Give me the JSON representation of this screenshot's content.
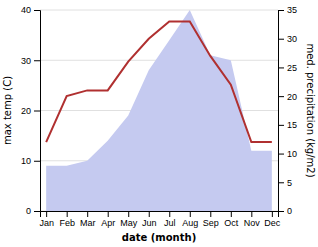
{
  "chart_data": {
    "type": "line",
    "categories": [
      "Jan",
      "Feb",
      "Mar",
      "Apr",
      "May",
      "Jun",
      "Jul",
      "Aug",
      "Sep",
      "Oct",
      "Nov",
      "Dec"
    ],
    "series": [
      {
        "type": "area",
        "color": "#c5caf0",
        "values": [
          9,
          9,
          10,
          14,
          19,
          28,
          34,
          40,
          31,
          30,
          12,
          12
        ]
      },
      {
        "type": "line",
        "color": "#b03030",
        "axis": "y2",
        "values": [
          12,
          20,
          21,
          21,
          26,
          30,
          33,
          33,
          27,
          22,
          12,
          12
        ]
      }
    ],
    "xlabel": "date (month)",
    "ylabel": "max temp (C)",
    "y2label": "med. precipitation (kg/m2)",
    "ylim": [
      0,
      40
    ],
    "yticks": [
      0,
      10,
      20,
      30,
      40
    ],
    "y2lim": [
      0,
      35
    ],
    "y2ticks": [
      0,
      5,
      10,
      15,
      20,
      25,
      30,
      35
    ],
    "grid": true
  }
}
